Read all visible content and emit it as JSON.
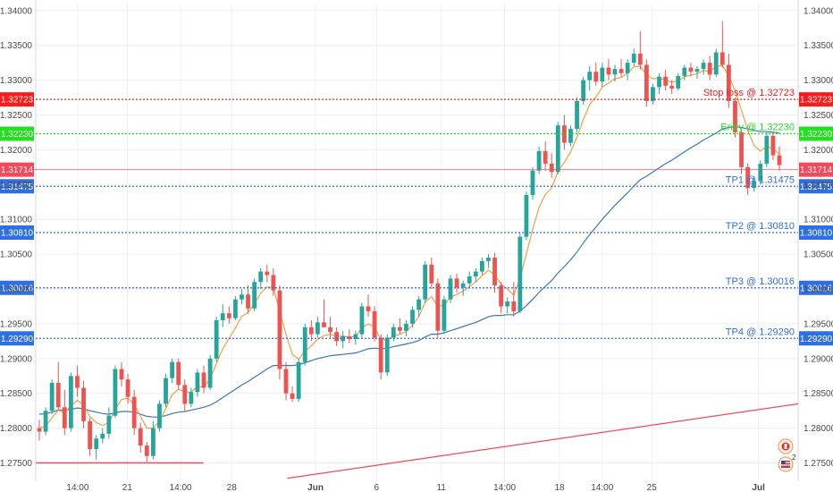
{
  "chart_data": {
    "type": "candlestick",
    "ylim": [
      1.2725,
      1.341
    ],
    "y_ticks": [
      "1.27500",
      "1.28000",
      "1.28500",
      "1.29000",
      "1.29500",
      "1.30000",
      "1.30500",
      "1.31000",
      "1.31500",
      "1.32000",
      "1.32500",
      "1.33000",
      "1.33500",
      "1.34000"
    ],
    "x_ticks": [
      "14:00",
      "21",
      "14:00",
      "28",
      "Jun",
      "6",
      "11",
      "14:00",
      "18",
      "14:00",
      "25",
      "Jul"
    ],
    "current_price": {
      "value": 1.31714,
      "label": "1.31714",
      "color": "#f2495c"
    },
    "levels": [
      {
        "name": "stop-loss",
        "value": 1.32723,
        "text": "Stop loss @ 1.32723",
        "badge": "1.32723",
        "color": "#ff1a1a"
      },
      {
        "name": "entry",
        "value": 1.3223,
        "text": "Entry @ 1.32230",
        "badge": "1.32230",
        "color": "#22e01f"
      },
      {
        "name": "tp1",
        "value": 1.31475,
        "text": "TP1 @ 1.31475",
        "badge": "1.31475",
        "color": "#2f6fe0"
      },
      {
        "name": "tp2",
        "value": 1.3081,
        "text": "TP2 @ 1.30810",
        "badge": "1.30810",
        "color": "#2f6fe0"
      },
      {
        "name": "tp3",
        "value": 1.30016,
        "text": "TP3 @ 1.30016",
        "badge": "1.30016",
        "color": "#2f6fe0"
      },
      {
        "name": "tp4",
        "value": 1.2929,
        "text": "TP4 @ 1.29290",
        "badge": "1.29290",
        "color": "#2f6fe0"
      }
    ],
    "support_line": {
      "value": 1.275,
      "start_fraction": 0.0,
      "end_fraction": 0.22,
      "color": "#f2495c"
    },
    "trend_line": {
      "p1": [
        0.33,
        1.2728
      ],
      "p2": [
        1.0,
        1.2835
      ],
      "color": "#f2495c"
    },
    "candles": [
      [
        1.28,
        1.2812,
        1.2782,
        1.2795
      ],
      [
        1.2795,
        1.283,
        1.279,
        1.2825
      ],
      [
        1.2825,
        1.287,
        1.282,
        1.2865
      ],
      [
        1.2865,
        1.2895,
        1.2825,
        1.283
      ],
      [
        1.283,
        1.2855,
        1.279,
        1.28
      ],
      [
        1.28,
        1.288,
        1.2795,
        1.2875
      ],
      [
        1.2875,
        1.289,
        1.2845,
        1.2858
      ],
      [
        1.2858,
        1.2868,
        1.28,
        1.281
      ],
      [
        1.281,
        1.2815,
        1.276,
        1.277
      ],
      [
        1.277,
        1.279,
        1.2755,
        1.2785
      ],
      [
        1.2785,
        1.28,
        1.2778,
        1.2792
      ],
      [
        1.2792,
        1.283,
        1.2785,
        1.2818
      ],
      [
        1.2818,
        1.289,
        1.2815,
        1.2885
      ],
      [
        1.2885,
        1.2895,
        1.286,
        1.287
      ],
      [
        1.287,
        1.2878,
        1.2835,
        1.2845
      ],
      [
        1.2845,
        1.2855,
        1.279,
        1.28
      ],
      [
        1.28,
        1.2808,
        1.2765,
        1.2775
      ],
      [
        1.2775,
        1.278,
        1.2752,
        1.276
      ],
      [
        1.276,
        1.281,
        1.2755,
        1.28
      ],
      [
        1.28,
        1.284,
        1.2795,
        1.2835
      ],
      [
        1.2835,
        1.2878,
        1.283,
        1.2872
      ],
      [
        1.2872,
        1.29,
        1.2865,
        1.2895
      ],
      [
        1.2895,
        1.29,
        1.2855,
        1.2862
      ],
      [
        1.2862,
        1.287,
        1.2825,
        1.2835
      ],
      [
        1.2835,
        1.2858,
        1.283,
        1.2852
      ],
      [
        1.2852,
        1.2885,
        1.2845,
        1.288
      ],
      [
        1.288,
        1.289,
        1.285,
        1.2858
      ],
      [
        1.2858,
        1.2905,
        1.2855,
        1.29
      ],
      [
        1.29,
        1.296,
        1.2895,
        1.2955
      ],
      [
        1.2955,
        1.2978,
        1.2945,
        1.2965
      ],
      [
        1.2965,
        1.2975,
        1.295,
        1.2958
      ],
      [
        1.2958,
        1.299,
        1.2955,
        1.2985
      ],
      [
        1.2985,
        1.3,
        1.2978,
        1.2992
      ],
      [
        1.2992,
        1.3005,
        1.2965,
        1.2972
      ],
      [
        1.2972,
        1.3015,
        1.2968,
        1.301
      ],
      [
        1.301,
        1.303,
        1.3,
        1.3025
      ],
      [
        1.3025,
        1.3035,
        1.301,
        1.302
      ],
      [
        1.302,
        1.303,
        1.299,
        1.2998
      ],
      [
        1.2998,
        1.3005,
        1.287,
        1.2885
      ],
      [
        1.2885,
        1.2895,
        1.284,
        1.285
      ],
      [
        1.285,
        1.286,
        1.2838,
        1.2842
      ],
      [
        1.2842,
        1.29,
        1.2838,
        1.2895
      ],
      [
        1.2895,
        1.295,
        1.289,
        1.2945
      ],
      [
        1.2945,
        1.2955,
        1.2925,
        1.2935
      ],
      [
        1.2935,
        1.296,
        1.293,
        1.2952
      ],
      [
        1.2952,
        1.2985,
        1.2948,
        1.2945
      ],
      [
        1.2945,
        1.296,
        1.293,
        1.2938
      ],
      [
        1.2938,
        1.2945,
        1.2918,
        1.2925
      ],
      [
        1.2925,
        1.294,
        1.2915,
        1.2932
      ],
      [
        1.2932,
        1.2942,
        1.2922,
        1.2928
      ],
      [
        1.2928,
        1.294,
        1.292,
        1.2935
      ],
      [
        1.2935,
        1.298,
        1.293,
        1.2975
      ],
      [
        1.2975,
        1.2992,
        1.296,
        1.2968
      ],
      [
        1.2968,
        1.2975,
        1.2925,
        1.293
      ],
      [
        1.293,
        1.2935,
        1.287,
        1.288
      ],
      [
        1.288,
        1.2935,
        1.2875,
        1.293
      ],
      [
        1.293,
        1.295,
        1.2925,
        1.2945
      ],
      [
        1.2945,
        1.2958,
        1.2935,
        1.294
      ],
      [
        1.294,
        1.2955,
        1.2932,
        1.295
      ],
      [
        1.295,
        1.2975,
        1.2945,
        1.297
      ],
      [
        1.297,
        1.299,
        1.296,
        1.2985
      ],
      [
        1.2985,
        1.304,
        1.298,
        1.3035
      ],
      [
        1.3035,
        1.3045,
        1.3,
        1.3008
      ],
      [
        1.3008,
        1.3015,
        1.293,
        1.294
      ],
      [
        1.294,
        1.299,
        1.2935,
        1.2985
      ],
      [
        1.2985,
        1.302,
        1.298,
        1.3015
      ],
      [
        1.3015,
        1.3022,
        1.2995,
        1.3002
      ],
      [
        1.3002,
        1.3012,
        1.299,
        1.3008
      ],
      [
        1.3008,
        1.3025,
        1.3002,
        1.3018
      ],
      [
        1.3018,
        1.303,
        1.301,
        1.3025
      ],
      [
        1.3025,
        1.3045,
        1.302,
        1.304
      ],
      [
        1.304,
        1.305,
        1.303,
        1.3045
      ],
      [
        1.3045,
        1.3052,
        1.2995,
        1.3005
      ],
      [
        1.3005,
        1.301,
        1.2965,
        1.2975
      ],
      [
        1.2975,
        1.2988,
        1.2965,
        1.2982
      ],
      [
        1.2982,
        1.301,
        1.296,
        1.2968
      ],
      [
        1.2968,
        1.308,
        1.2965,
        1.3075
      ],
      [
        1.3075,
        1.314,
        1.307,
        1.3135
      ],
      [
        1.3135,
        1.3175,
        1.3128,
        1.317
      ],
      [
        1.317,
        1.3205,
        1.3165,
        1.3198
      ],
      [
        1.3198,
        1.3212,
        1.317,
        1.318
      ],
      [
        1.318,
        1.3195,
        1.316,
        1.3168
      ],
      [
        1.3168,
        1.324,
        1.3165,
        1.3235
      ],
      [
        1.3235,
        1.325,
        1.32,
        1.321
      ],
      [
        1.321,
        1.3235,
        1.3205,
        1.323
      ],
      [
        1.323,
        1.3275,
        1.3225,
        1.327
      ],
      [
        1.327,
        1.3305,
        1.3265,
        1.33
      ],
      [
        1.33,
        1.332,
        1.3285,
        1.3312
      ],
      [
        1.3312,
        1.3325,
        1.3292,
        1.3298
      ],
      [
        1.3298,
        1.3325,
        1.329,
        1.3318
      ],
      [
        1.3318,
        1.333,
        1.33,
        1.3308
      ],
      [
        1.3308,
        1.3322,
        1.3298,
        1.3316
      ],
      [
        1.3316,
        1.333,
        1.3305,
        1.331
      ],
      [
        1.331,
        1.333,
        1.33,
        1.3325
      ],
      [
        1.3325,
        1.3345,
        1.332,
        1.3338
      ],
      [
        1.3338,
        1.337,
        1.3315,
        1.3322
      ],
      [
        1.3322,
        1.333,
        1.3262,
        1.327
      ],
      [
        1.327,
        1.3295,
        1.3265,
        1.329
      ],
      [
        1.329,
        1.331,
        1.328,
        1.3305
      ],
      [
        1.3305,
        1.3315,
        1.3285,
        1.3292
      ],
      [
        1.3292,
        1.33,
        1.328,
        1.3288
      ],
      [
        1.3288,
        1.331,
        1.3285,
        1.3306
      ],
      [
        1.3306,
        1.3322,
        1.33,
        1.3318
      ],
      [
        1.3318,
        1.3325,
        1.3305,
        1.3312
      ],
      [
        1.3312,
        1.332,
        1.3302,
        1.3316
      ],
      [
        1.3316,
        1.333,
        1.3308,
        1.3325
      ],
      [
        1.3325,
        1.3335,
        1.33,
        1.3308
      ],
      [
        1.3308,
        1.3345,
        1.3305,
        1.334
      ],
      [
        1.334,
        1.3385,
        1.3318,
        1.3322
      ],
      [
        1.3322,
        1.3338,
        1.326,
        1.327
      ],
      [
        1.327,
        1.3275,
        1.3218,
        1.3225
      ],
      [
        1.3225,
        1.323,
        1.3165,
        1.3175
      ],
      [
        1.3175,
        1.318,
        1.3135,
        1.3145
      ],
      [
        1.3145,
        1.316,
        1.314,
        1.3155
      ],
      [
        1.3155,
        1.3185,
        1.315,
        1.318
      ],
      [
        1.318,
        1.3225,
        1.3175,
        1.322
      ],
      [
        1.322,
        1.3225,
        1.3185,
        1.3192
      ],
      [
        1.3192,
        1.3205,
        1.317,
        1.3178
      ]
    ],
    "ma_fast": [
      1.28,
      1.2803,
      1.2815,
      1.2826,
      1.2822,
      1.2832,
      1.284,
      1.2833,
      1.2817,
      1.2808,
      1.2804,
      1.2808,
      1.2827,
      1.2841,
      1.2843,
      1.2834,
      1.2817,
      1.28,
      1.28,
      1.281,
      1.2828,
      1.2848,
      1.2856,
      1.2852,
      1.2852,
      1.286,
      1.2859,
      1.2871,
      1.2893,
      1.2914,
      1.2929,
      1.2944,
      1.2961,
      1.2966,
      1.2979,
      1.2994,
      1.3003,
      1.3002,
      1.2968,
      1.2935,
      1.2906,
      1.2899,
      1.2911,
      1.2918,
      1.2928,
      1.2933,
      1.2935,
      1.2932,
      1.2932,
      1.2931,
      1.2932,
      1.2944,
      1.295,
      1.2945,
      1.2927,
      1.2927,
      1.2932,
      1.2935,
      1.2939,
      1.2948,
      1.296,
      1.2981,
      1.2989,
      1.2975,
      1.2977,
      1.2988,
      1.2992,
      1.2997,
      1.3003,
      1.301,
      1.3019,
      1.3027,
      1.302,
      1.3007,
      1.3,
      1.2991,
      1.3015,
      1.305,
      1.3086,
      1.3117,
      1.3136,
      1.3145,
      1.3169,
      1.3182,
      1.3197,
      1.3218,
      1.3243,
      1.3265,
      1.3276,
      1.329,
      1.3296,
      1.3302,
      1.3304,
      1.331,
      1.3319,
      1.332,
      1.3307,
      1.3302,
      1.3303,
      1.33,
      1.3297,
      1.3299,
      1.3305,
      1.3307,
      1.3309,
      1.3314,
      1.3312,
      1.332,
      1.3321,
      1.3306,
      1.3285,
      1.3257,
      1.3228,
      1.3206,
      1.3198,
      1.3205,
      1.3201,
      1.3194
    ],
    "ma_slow": [
      1.282,
      1.2821,
      1.2823,
      1.2826,
      1.2826,
      1.2827,
      1.2829,
      1.2828,
      1.2825,
      1.2823,
      1.2821,
      1.282,
      1.2822,
      1.2824,
      1.2824,
      1.2823,
      1.282,
      1.2817,
      1.2816,
      1.2816,
      1.2818,
      1.2821,
      1.2823,
      1.2824,
      1.2826,
      1.2828,
      1.283,
      1.2833,
      1.2838,
      1.2844,
      1.285,
      1.2856,
      1.2862,
      1.2867,
      1.2873,
      1.2879,
      1.2885,
      1.289,
      1.289,
      1.289,
      1.289,
      1.2891,
      1.2894,
      1.2897,
      1.29,
      1.2902,
      1.2904,
      1.2905,
      1.2906,
      1.2907,
      1.2908,
      1.2911,
      1.2914,
      1.2915,
      1.2914,
      1.2915,
      1.2917,
      1.2919,
      1.2921,
      1.2923,
      1.2926,
      1.2931,
      1.2935,
      1.2935,
      1.2937,
      1.294,
      1.2943,
      1.2946,
      1.2949,
      1.2952,
      1.2956,
      1.296,
      1.2962,
      1.2962,
      1.2963,
      1.2963,
      1.2968,
      1.2976,
      1.2985,
      1.2995,
      1.3004,
      1.3012,
      1.3023,
      1.3032,
      1.3042,
      1.3053,
      1.3066,
      1.3078,
      1.3089,
      1.31,
      1.311,
      1.312,
      1.3129,
      1.3138,
      1.3148,
      1.3157,
      1.3162,
      1.3168,
      1.3174,
      1.318,
      1.3185,
      1.3191,
      1.3197,
      1.3203,
      1.3208,
      1.3214,
      1.3219,
      1.3224,
      1.323,
      1.3232,
      1.3233,
      1.3232,
      1.323,
      1.3228,
      1.3226,
      1.3226,
      1.3225,
      1.3224
    ],
    "colors": {
      "up": "#26a69a",
      "down": "#ef5350",
      "ma_fast": "#f59e42",
      "ma_slow": "#3c78b4",
      "grid": "#eceff2",
      "axis_text": "#4a4a4a"
    }
  },
  "badges": [
    {
      "name": "ca-flag-icon",
      "label": ""
    },
    {
      "name": "us-flag-icon",
      "label": "2"
    }
  ]
}
